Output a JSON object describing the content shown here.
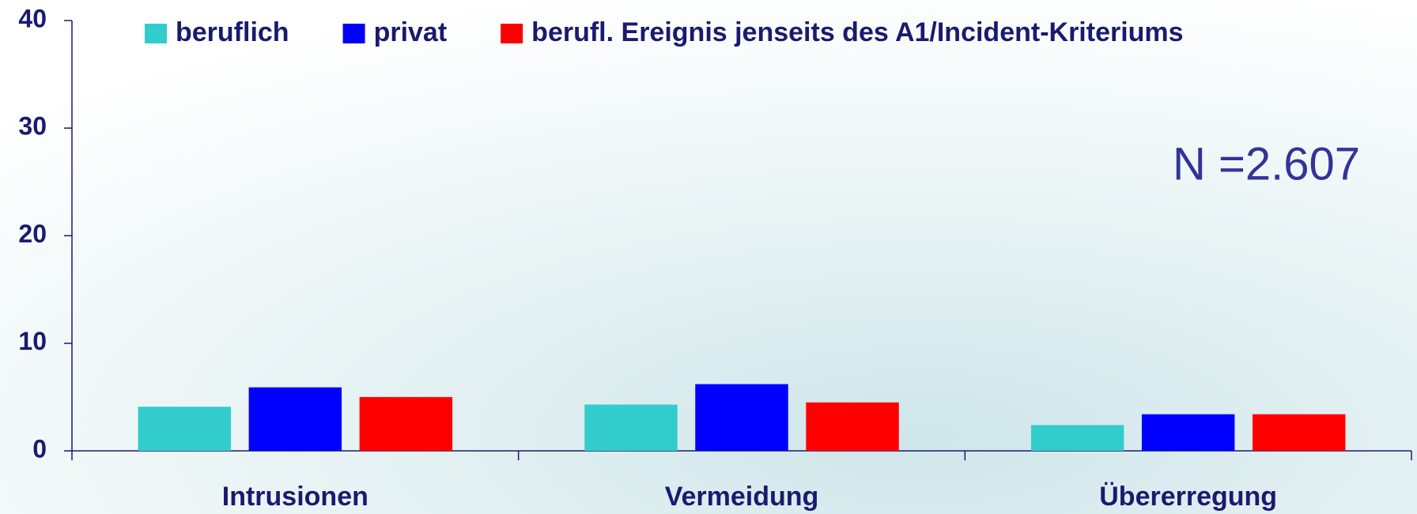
{
  "chart_data": {
    "type": "bar",
    "categories": [
      "Intrusionen",
      "Vermeidung",
      "Übererregung"
    ],
    "series": [
      {
        "name": "beruflich",
        "color": "#33cccc",
        "values": [
          4.1,
          4.3,
          2.4
        ]
      },
      {
        "name": "privat",
        "color": "#0000ff",
        "values": [
          5.9,
          6.2,
          3.4
        ]
      },
      {
        "name": "berufl. Ereignis jenseits des A1/Incident-Kriteriums",
        "color": "#ff0000",
        "values": [
          5.0,
          4.5,
          3.4
        ]
      }
    ],
    "ylim": [
      0,
      40
    ],
    "yticks": [
      0,
      10,
      20,
      30,
      40
    ],
    "annotation": "N =2.607"
  }
}
